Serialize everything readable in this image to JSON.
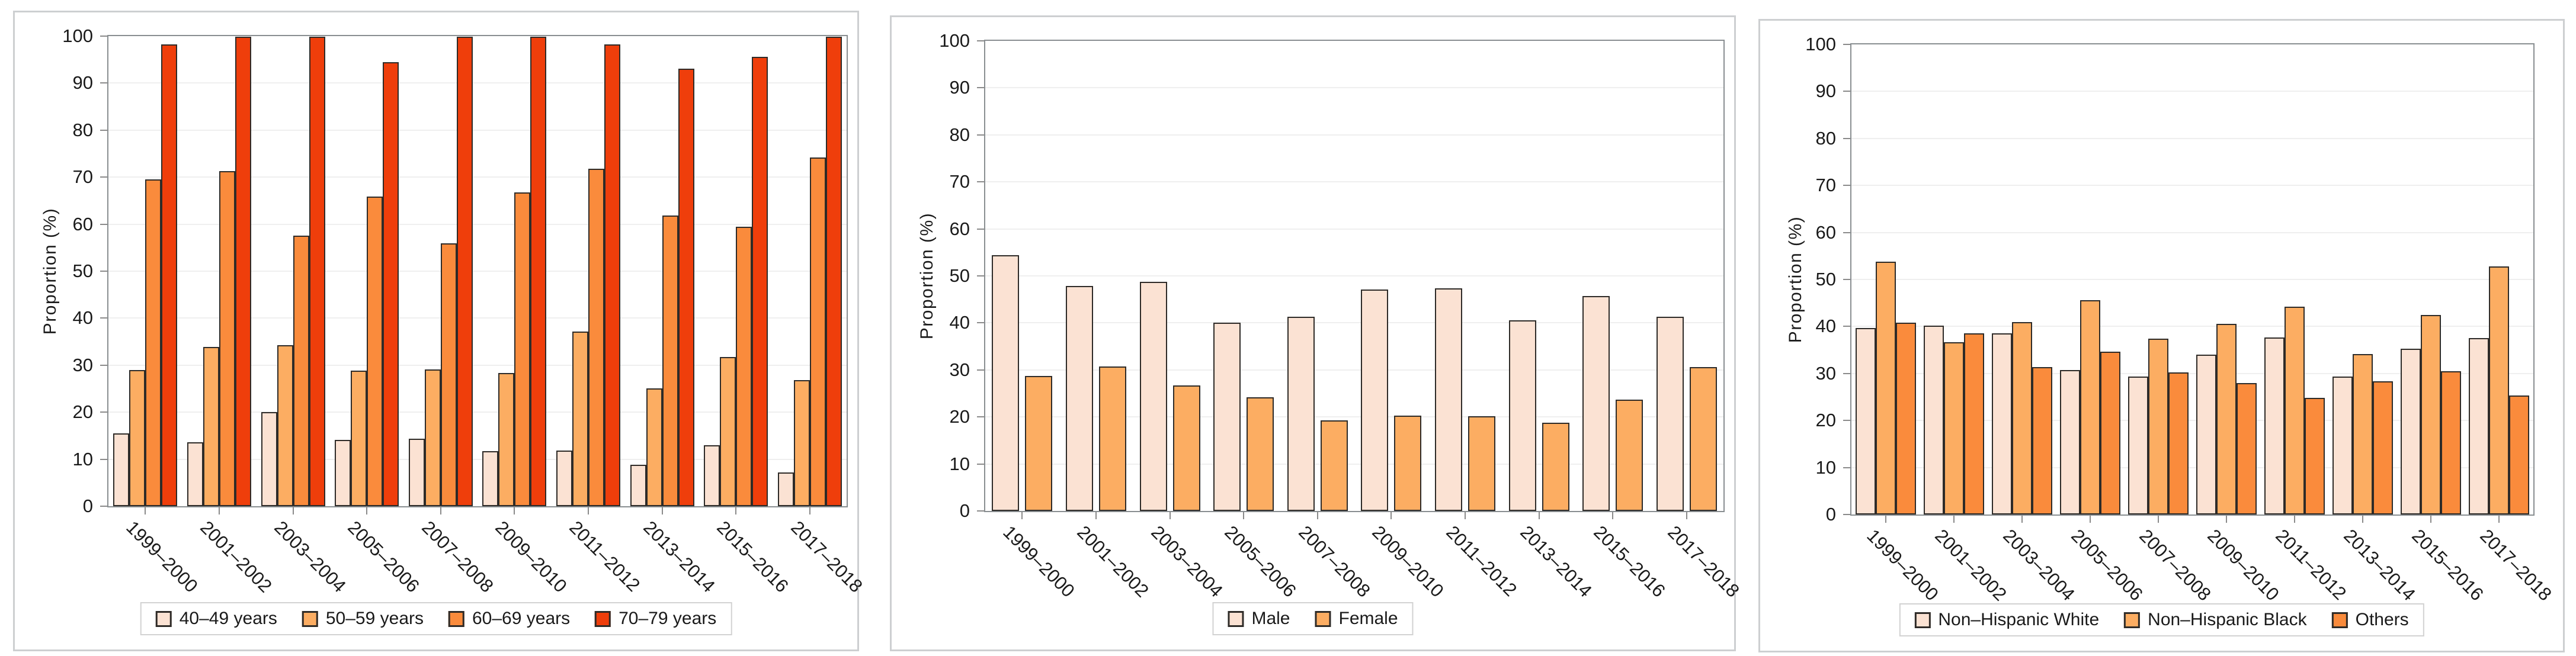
{
  "style": {
    "background": "#FFFFFF",
    "panel_border": "#CDCFD1",
    "plot_frame": "#898E91",
    "gridline": "#EFEFEF",
    "tick": "#8A8A8A",
    "text": "#1A1A1A",
    "bar_outline": "#2E2B28"
  },
  "chart_data": [
    {
      "type": "bar",
      "title": "",
      "ylabel": "Proportion (%)",
      "xlabel": "",
      "ylim": [
        0,
        100
      ],
      "ytick_step": 10,
      "grid": true,
      "legend_position": "bottom",
      "x_tick_rotation_deg": 45,
      "categories": [
        "1999–2000",
        "2001–2002",
        "2003–2004",
        "2005–2006",
        "2007–2008",
        "2009–2010",
        "2011–2012",
        "2013–2014",
        "2015–2016",
        "2017–2018"
      ],
      "series": [
        {
          "name": "40–49 years",
          "color": "#FBE2D3",
          "values": [
            15.5,
            13.6,
            20.0,
            14.1,
            14.4,
            11.7,
            11.8,
            8.8,
            13.0,
            7.2
          ]
        },
        {
          "name": "50–59 years",
          "color": "#FCAD62",
          "values": [
            29.0,
            33.9,
            34.2,
            28.8,
            29.1,
            28.4,
            37.2,
            25.1,
            31.7,
            26.8
          ]
        },
        {
          "name": "60–69 years",
          "color": "#FA8B3C",
          "values": [
            69.5,
            71.3,
            57.5,
            65.9,
            55.9,
            66.8,
            71.8,
            61.9,
            59.4,
            74.2
          ]
        },
        {
          "name": "70–79 years",
          "color": "#EF3E0B",
          "values": [
            98.2,
            99.9,
            99.9,
            94.5,
            99.9,
            99.9,
            98.2,
            93.1,
            95.6,
            99.9
          ]
        }
      ]
    },
    {
      "type": "bar",
      "title": "",
      "ylabel": "Proportion (%)",
      "xlabel": "",
      "ylim": [
        0,
        100
      ],
      "ytick_step": 10,
      "grid": true,
      "legend_position": "bottom",
      "x_tick_rotation_deg": 45,
      "categories": [
        "1999–2000",
        "2001–2002",
        "2003–2004",
        "2005–2006",
        "2007–2008",
        "2009–2010",
        "2011–2012",
        "2013–2014",
        "2015–2016",
        "2017–2018"
      ],
      "series": [
        {
          "name": "Male",
          "color": "#FBE2D3",
          "values": [
            54.4,
            47.9,
            48.8,
            40.1,
            41.3,
            47.1,
            47.3,
            40.5,
            45.7,
            41.3
          ]
        },
        {
          "name": "Female",
          "color": "#FCAD62",
          "values": [
            28.7,
            30.7,
            26.7,
            24.2,
            19.3,
            20.3,
            20.1,
            18.8,
            23.7,
            30.6
          ]
        }
      ]
    },
    {
      "type": "bar",
      "title": "",
      "ylabel": "Proportion (%)",
      "xlabel": "",
      "ylim": [
        0,
        100
      ],
      "ytick_step": 10,
      "grid": true,
      "legend_position": "bottom",
      "x_tick_rotation_deg": 45,
      "categories": [
        "1999–2000",
        "2001–2002",
        "2003–2004",
        "2005–2006",
        "2007–2008",
        "2009–2010",
        "2011–2012",
        "2013–2014",
        "2015–2016",
        "2017–2018"
      ],
      "series": [
        {
          "name": "Non–Hispanic White",
          "color": "#FBE2D3",
          "values": [
            39.7,
            40.2,
            38.6,
            30.7,
            29.3,
            34.0,
            37.6,
            29.3,
            35.3,
            37.5
          ]
        },
        {
          "name": "Non–Hispanic Black",
          "color": "#FCAD62",
          "values": [
            53.8,
            36.6,
            40.9,
            45.6,
            37.4,
            40.5,
            44.2,
            34.1,
            42.4,
            52.8
          ]
        },
        {
          "name": "Others",
          "color": "#FA8B3C",
          "values": [
            40.8,
            38.6,
            31.3,
            34.6,
            30.2,
            27.9,
            24.8,
            28.4,
            30.5,
            25.3
          ]
        }
      ]
    }
  ]
}
